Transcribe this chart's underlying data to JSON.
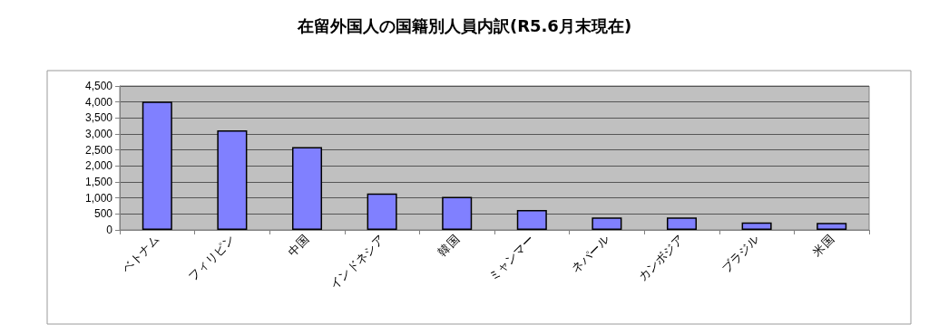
{
  "chart_data": {
    "type": "bar",
    "title": "在留外国人の国籍別人員内訳(R5.6月末現在)",
    "categories": [
      "ベトナム",
      "フィリピン",
      "中国",
      "インドネシア",
      "韓国",
      "ミャンマー",
      "ネパール",
      "カンボジア",
      "ブラジル",
      "米国"
    ],
    "values": [
      4010,
      3110,
      2590,
      1140,
      1030,
      620,
      390,
      390,
      230,
      220
    ],
    "color": "#8080ff",
    "ylim": [
      0,
      4500
    ],
    "yticks": [
      0,
      500,
      {
        "value": 1000,
        "label": "1,000"
      },
      {
        "value": 1500,
        "label": "1,500"
      },
      {
        "value": 2000,
        "label": "2,000"
      },
      {
        "value": 2500,
        "label": "2,500"
      },
      {
        "value": 3000,
        "label": "3,000"
      },
      {
        "value": 3500,
        "label": "3,500"
      },
      {
        "value": 4000,
        "label": "4,000"
      },
      {
        "value": 4500,
        "label": "4,500"
      }
    ],
    "grid": "y"
  }
}
